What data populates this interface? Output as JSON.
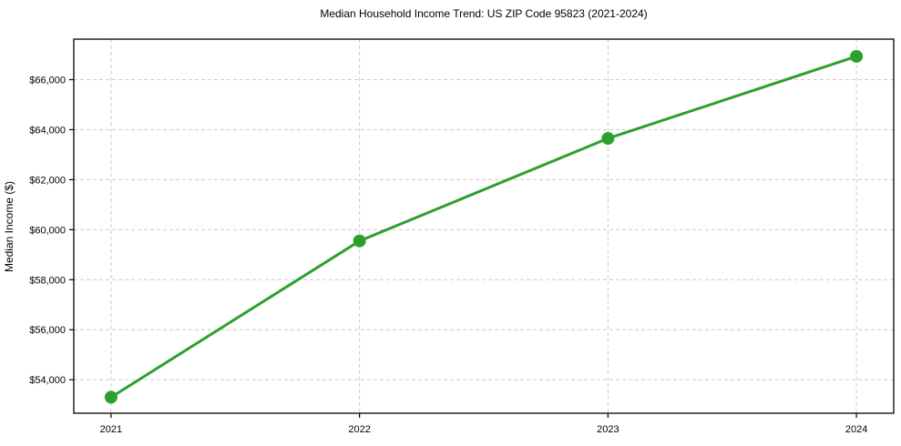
{
  "chart_data": {
    "type": "line",
    "title": "Median Household Income Trend: US ZIP Code 95823 (2021-2024)",
    "xlabel": "",
    "ylabel": "Median Income ($)",
    "x": [
      2021,
      2022,
      2023,
      2024
    ],
    "series": [
      {
        "name": "Median Household Income",
        "values": [
          53300,
          59550,
          63650,
          66930
        ]
      }
    ],
    "xtick_labels": [
      "2021",
      "2022",
      "2023",
      "2024"
    ],
    "ytick_values": [
      54000,
      56000,
      58000,
      60000,
      62000,
      64000,
      66000
    ],
    "ytick_labels": [
      "$54,000",
      "$56,000",
      "$58,000",
      "$60,000",
      "$62,000",
      "$64,000",
      "$66,000"
    ],
    "xlim": [
      2020.85,
      2024.15
    ],
    "ylim": [
      52660,
      67620
    ],
    "grid": true,
    "grid_style": "dashed",
    "legend_position": "none",
    "line_color": "#2ca02c",
    "marker": "circle",
    "marker_color": "#2ca02c",
    "marker_radius": 7,
    "line_width": 3,
    "grid_color": "#cccccc",
    "axis_color": "#000000",
    "text_color": "#000000",
    "tick_font_size": 11,
    "background": "#ffffff"
  }
}
